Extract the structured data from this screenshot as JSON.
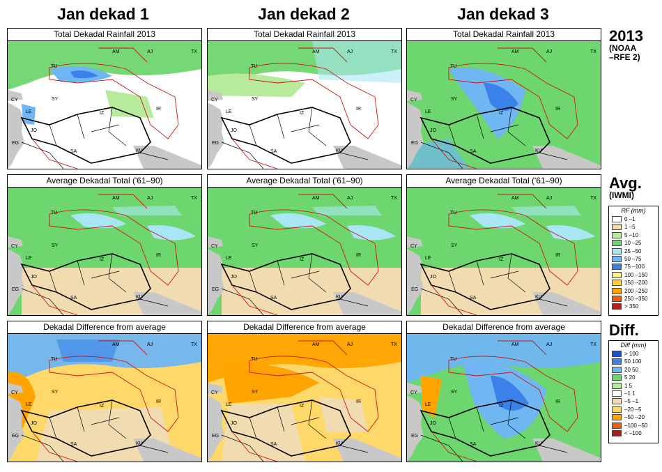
{
  "columns": [
    "Jan dekad 1",
    "Jan dekad 2",
    "Jan dekad 3"
  ],
  "rows": [
    {
      "title": "Total Dekadal Rainfall 2013",
      "label_big": "2013",
      "label_small": [
        "(NOAA",
        "–RFE 2)"
      ]
    },
    {
      "title": "Average Dekadal Total ('61–90)",
      "label_big": "Avg.",
      "label_small": [
        "(IWMI)"
      ]
    },
    {
      "title": "Dekadal Difference from average",
      "label_big": "Diff.",
      "label_small": []
    }
  ],
  "map_labels": [
    "AM",
    "AJ",
    "TX",
    "TU",
    "SY",
    "IR",
    "CY",
    "LE",
    "JO",
    "EG",
    "SA",
    "KU",
    "IZ"
  ],
  "rf_legend": {
    "title": "RF (mm)",
    "items": [
      {
        "label": "0 –1",
        "color": "#ffffff"
      },
      {
        "label": "1 –5",
        "color": "#f1dcb2"
      },
      {
        "label": "5 –10",
        "color": "#b7ea9a"
      },
      {
        "label": "10 –25",
        "color": "#6ed66e"
      },
      {
        "label": "25 –50",
        "color": "#a8e6f4"
      },
      {
        "label": "50 –75",
        "color": "#6fb6f2"
      },
      {
        "label": "75 –100",
        "color": "#3a82ea"
      },
      {
        "label": "100 –150",
        "color": "#fff08a"
      },
      {
        "label": "150 –200",
        "color": "#ffd23c"
      },
      {
        "label": "200 –250",
        "color": "#ffa400"
      },
      {
        "label": "250 –350",
        "color": "#f05a10"
      },
      {
        "label": "> 350",
        "color": "#b41e1e"
      }
    ]
  },
  "diff_legend": {
    "title": "Diff (mm)",
    "items": [
      {
        "label": "> 100",
        "color": "#1e50c8"
      },
      {
        "label": "50 100",
        "color": "#3a82ea"
      },
      {
        "label": "20 50",
        "color": "#6fb6f2"
      },
      {
        "label": "5 20",
        "color": "#6ed66e"
      },
      {
        "label": "1 5",
        "color": "#b7ea9a"
      },
      {
        "label": "–1 1",
        "color": "#ffffff"
      },
      {
        "label": "–5 –1",
        "color": "#f1dcb2"
      },
      {
        "label": "–20 –5",
        "color": "#ffd86a"
      },
      {
        "label": "–50 –20",
        "color": "#ffa400"
      },
      {
        "label": "–100 –50",
        "color": "#f05a10"
      },
      {
        "label": "< –100",
        "color": "#a01e1e"
      }
    ]
  },
  "panel_fill": {
    "r0c0": {
      "base": "#ffffff",
      "north": "#6ed66e",
      "accent": "#6fb6f2",
      "accent2": "#3a82ea"
    },
    "r0c1": {
      "base": "#ffffff",
      "north": "#6ed66e",
      "accent": "#b7ea9a",
      "accent2": "#a8e6f4"
    },
    "r0c2": {
      "base": "#6ed66e",
      "north": "#6ed66e",
      "accent": "#6fb6f2",
      "accent2": "#3a82ea"
    },
    "r1": {
      "base": "#6ed66e",
      "north": "#6ed66e",
      "accent": "#a8e6f4",
      "accent2": "#f1dcb2"
    },
    "r2c0": {
      "base": "#ffd86a",
      "north": "#6fb6f2",
      "accent": "#ffa400",
      "accent2": "#f1dcb2"
    },
    "r2c1": {
      "base": "#ffd86a",
      "north": "#ffa400",
      "accent": "#ffa400",
      "accent2": "#f1dcb2"
    },
    "r2c2": {
      "base": "#6ed66e",
      "north": "#6fb6f2",
      "accent": "#6fb6f2",
      "accent2": "#3a82ea"
    }
  },
  "sea_color": "#c8c8c8"
}
